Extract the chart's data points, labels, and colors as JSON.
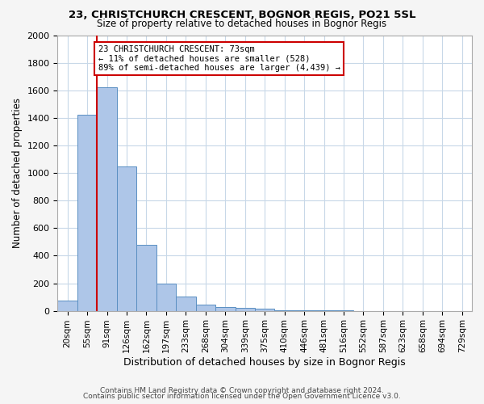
{
  "title1": "23, CHRISTCHURCH CRESCENT, BOGNOR REGIS, PO21 5SL",
  "title2": "Size of property relative to detached houses in Bognor Regis",
  "xlabel": "Distribution of detached houses by size in Bognor Regis",
  "ylabel": "Number of detached properties",
  "categories": [
    "20sqm",
    "55sqm",
    "91sqm",
    "126sqm",
    "162sqm",
    "197sqm",
    "233sqm",
    "268sqm",
    "304sqm",
    "339sqm",
    "375sqm",
    "410sqm",
    "446sqm",
    "481sqm",
    "516sqm",
    "552sqm",
    "587sqm",
    "623sqm",
    "658sqm",
    "694sqm",
    "729sqm"
  ],
  "values": [
    75,
    1425,
    1625,
    1050,
    480,
    200,
    105,
    45,
    25,
    20,
    15,
    5,
    2,
    1,
    1,
    0,
    0,
    0,
    0,
    0,
    0
  ],
  "bar_color": "#aec6e8",
  "bar_edge_color": "#5a8fc2",
  "property_line_x": 2,
  "property_line_color": "#cc0000",
  "annotation_text": "23 CHRISTCHURCH CRESCENT: 73sqm\n← 11% of detached houses are smaller (528)\n89% of semi-detached houses are larger (4,439) →",
  "annotation_box_color": "#ffffff",
  "annotation_box_edge": "#cc0000",
  "ylim": [
    0,
    2000
  ],
  "yticks": [
    0,
    200,
    400,
    600,
    800,
    1000,
    1200,
    1400,
    1600,
    1800,
    2000
  ],
  "footer1": "Contains HM Land Registry data © Crown copyright and database right 2024.",
  "footer2": "Contains public sector information licensed under the Open Government Licence v3.0.",
  "bg_color": "#f5f5f5",
  "plot_bg_color": "#ffffff",
  "grid_color": "#c8d8e8"
}
